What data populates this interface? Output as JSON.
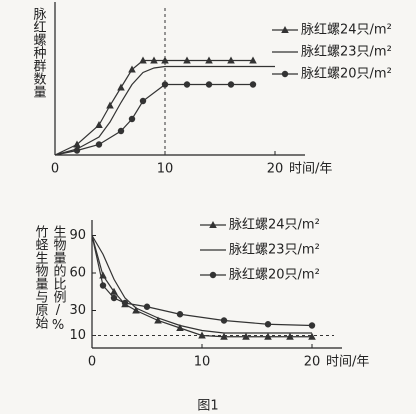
{
  "chart_data": [
    {
      "type": "line",
      "y_label": [
        "脉红螺种群数量"
      ],
      "x_label": "时间/年",
      "xlim": [
        0,
        22
      ],
      "ylim": [
        0,
        100
      ],
      "xticks": [
        0,
        10,
        20
      ],
      "yticks": [],
      "vline": 10,
      "series": [
        {
          "name": "脉红螺24只/m²",
          "color": "#333333",
          "marker": "triangle",
          "x": [
            0,
            2,
            4,
            5,
            6,
            7,
            8,
            9,
            10,
            12,
            14,
            16,
            18
          ],
          "values": [
            0,
            7,
            20,
            33,
            45,
            57,
            63,
            63,
            63,
            63,
            63,
            63,
            63
          ]
        },
        {
          "name": "脉红螺23只/m²",
          "color": "#333333",
          "marker": "none",
          "x": [
            0,
            2,
            4,
            5,
            6,
            7,
            8,
            9,
            10,
            12,
            14,
            16,
            18,
            20
          ],
          "values": [
            0,
            4,
            12,
            22,
            35,
            47,
            55,
            58,
            59,
            59,
            59,
            59,
            59,
            59
          ]
        },
        {
          "name": "脉红螺20只/m²",
          "color": "#333333",
          "marker": "circle",
          "x": [
            0,
            2,
            4,
            6,
            7,
            8,
            10,
            12,
            14,
            16,
            18
          ],
          "values": [
            0,
            3,
            7,
            16,
            24,
            36,
            47,
            47,
            47,
            47,
            47
          ]
        }
      ]
    },
    {
      "type": "line",
      "y_label": [
        "竹蛏生物量与原始",
        "生物量的比例/%"
      ],
      "x_label": "时间/年",
      "xlim": [
        0,
        22
      ],
      "ylim": [
        0,
        100
      ],
      "xticks": [
        0,
        10,
        20
      ],
      "yticks": [
        10,
        30,
        60,
        90
      ],
      "hline": 10,
      "series": [
        {
          "name": "脉红螺24只/m²",
          "color": "#333333",
          "marker": "triangle",
          "x": [
            0,
            1,
            2,
            3,
            4,
            6,
            8,
            10,
            12,
            14,
            16,
            18,
            20
          ],
          "values": [
            90,
            58,
            45,
            35,
            30,
            22,
            16,
            10,
            9,
            9,
            9,
            9,
            9
          ]
        },
        {
          "name": "脉红螺23只/m²",
          "color": "#333333",
          "marker": "none",
          "x": [
            0,
            1,
            2,
            3,
            4,
            6,
            8,
            10,
            12,
            14,
            16,
            18,
            20
          ],
          "values": [
            90,
            75,
            55,
            40,
            32,
            24,
            18,
            14,
            12,
            12,
            12,
            12,
            12
          ]
        },
        {
          "name": "脉红螺20只/m²",
          "color": "#333333",
          "marker": "circle",
          "x": [
            0,
            1,
            2,
            3,
            5,
            8,
            12,
            16,
            20
          ],
          "values": [
            90,
            50,
            40,
            36,
            33,
            27,
            22,
            19,
            18
          ]
        }
      ]
    }
  ],
  "caption": "图1"
}
